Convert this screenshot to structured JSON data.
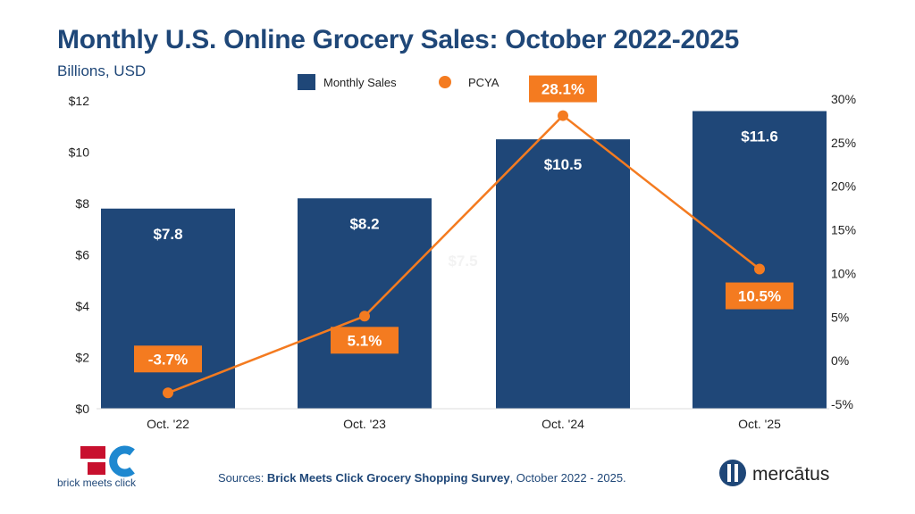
{
  "title": "Monthly U.S. Online Grocery Sales: October 2022-2025",
  "subtitle": "Billions, USD",
  "chart_data": {
    "type": "bar+line",
    "categories": [
      "Oct. '22",
      "Oct. '23",
      "Oct. '24",
      "Oct. '25"
    ],
    "series": [
      {
        "name": "Monthly Sales",
        "type": "bar",
        "axis": "left",
        "values": [
          7.8,
          8.2,
          10.5,
          11.6
        ],
        "labels": [
          "$7.8",
          "$8.2",
          "$10.5",
          "$11.6"
        ],
        "color": "#1f4778"
      },
      {
        "name": "PCYA",
        "type": "line",
        "axis": "right",
        "values": [
          -3.7,
          5.1,
          28.1,
          10.5
        ],
        "labels": [
          "-3.7%",
          "5.1%",
          "28.1%",
          "10.5%"
        ],
        "color": "#f47b20"
      }
    ],
    "left_axis": {
      "ylim": [
        0,
        12
      ],
      "ticks": [
        "$0",
        "$2",
        "$4",
        "$6",
        "$8",
        "$10",
        "$12"
      ]
    },
    "right_axis": {
      "ylim": [
        -5,
        30
      ],
      "ticks": [
        "-5%",
        "0%",
        "5%",
        "10%",
        "15%",
        "20%",
        "25%",
        "30%"
      ]
    },
    "ghost_label": "$7.5",
    "legend": "top-center",
    "grid": false
  },
  "footer": {
    "sources_prefix": "Sources: ",
    "sources_bold": "Brick Meets Click Grocery Shopping Survey",
    "sources_suffix": ", October 2022 - 2025.",
    "logo_left": "brick meets click",
    "logo_right": "mercātus"
  }
}
